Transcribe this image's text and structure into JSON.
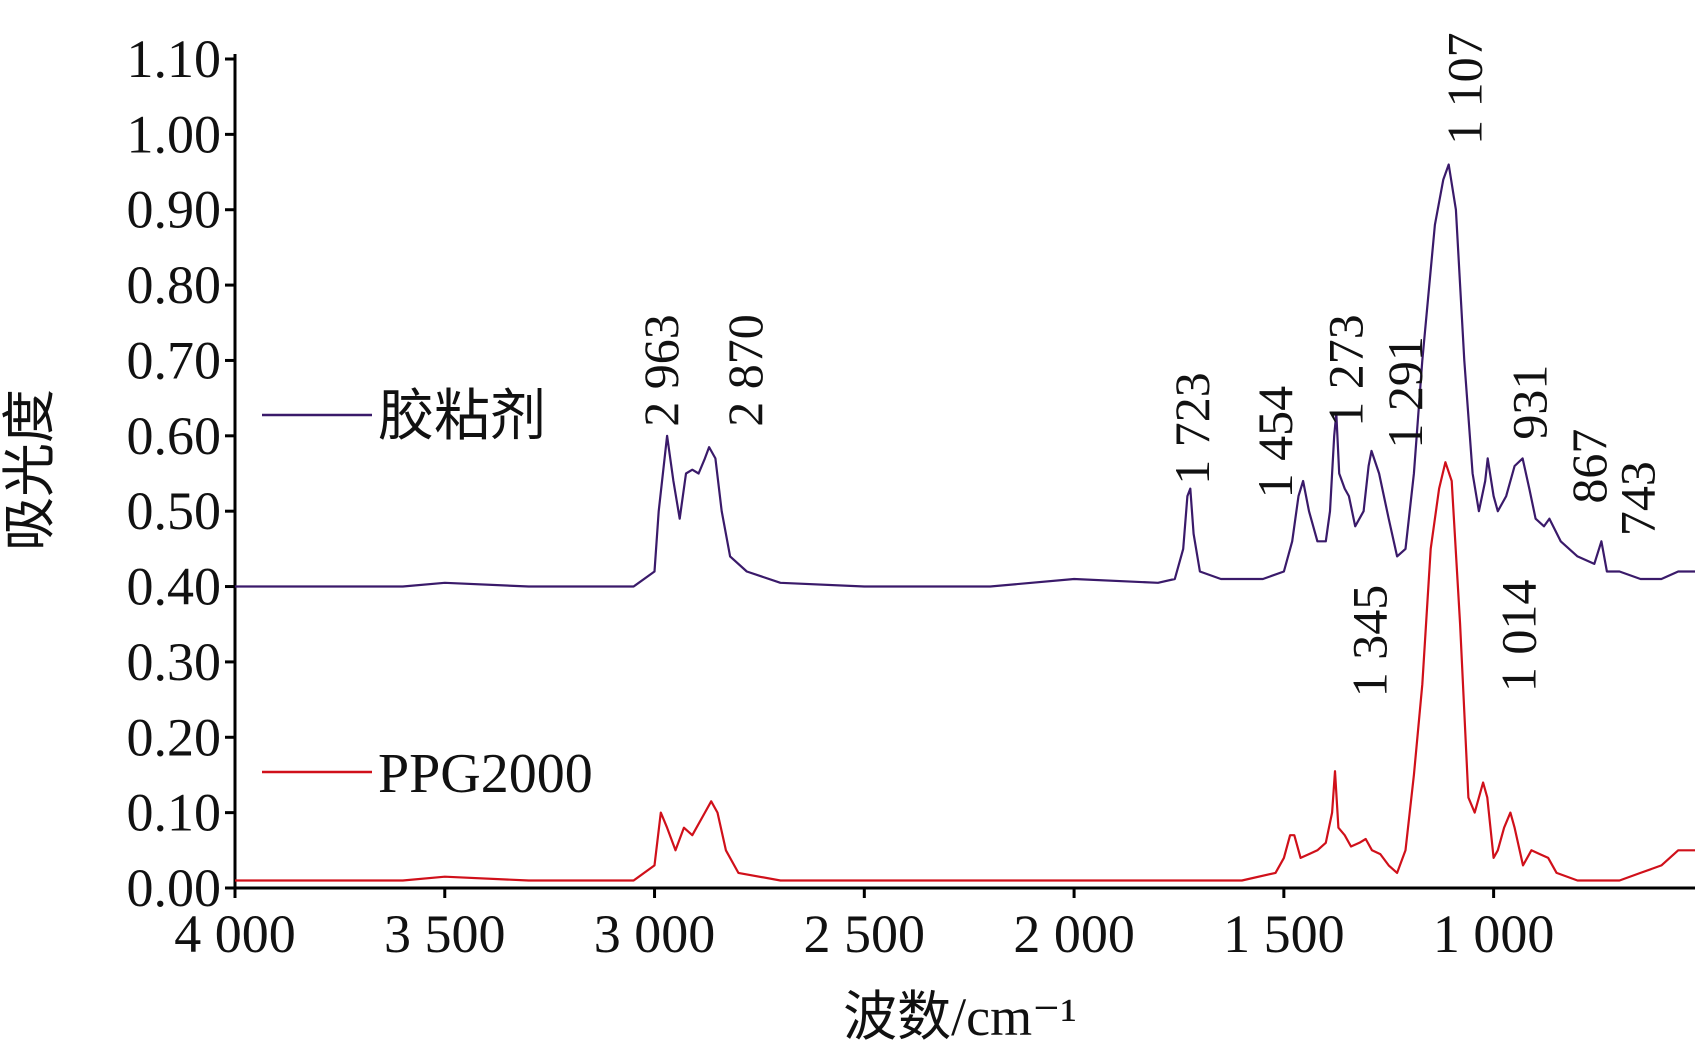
{
  "chart_data": {
    "type": "line",
    "x_label": "波数/cm⁻¹",
    "y_label": "吸光度",
    "xlim": [
      4000,
      520
    ],
    "ylim": [
      0,
      1.1
    ],
    "xticks": [
      {
        "value": 4000,
        "label": "4 000"
      },
      {
        "value": 3500,
        "label": "3 500"
      },
      {
        "value": 3000,
        "label": "3 000"
      },
      {
        "value": 2500,
        "label": "2 500"
      },
      {
        "value": 2000,
        "label": "2 000"
      },
      {
        "value": 1500,
        "label": "1 500"
      },
      {
        "value": 1000,
        "label": "1 000"
      }
    ],
    "yticks": [
      {
        "value": 0,
        "label": "0.00"
      },
      {
        "value": 0.1,
        "label": "0.10"
      },
      {
        "value": 0.2,
        "label": "0.20"
      },
      {
        "value": 0.3,
        "label": "0.30"
      },
      {
        "value": 0.4,
        "label": "0.40"
      },
      {
        "value": 0.5,
        "label": "0.50"
      },
      {
        "value": 0.6,
        "label": "0.60"
      },
      {
        "value": 0.7,
        "label": "0.70"
      },
      {
        "value": 0.8,
        "label": "0.80"
      },
      {
        "value": 0.9,
        "label": "0.90"
      },
      {
        "value": 1.0,
        "label": "1.00"
      },
      {
        "value": 1.1,
        "label": "1.10"
      }
    ],
    "legend": "left",
    "series": [
      {
        "name": "胶粘剂",
        "color": "#3a1a6a",
        "x": [
          4000,
          3600,
          3500,
          3300,
          3050,
          3000,
          2990,
          2970,
          2955,
          2940,
          2925,
          2910,
          2895,
          2880,
          2870,
          2855,
          2840,
          2820,
          2780,
          2700,
          2500,
          2200,
          2000,
          1800,
          1760,
          1740,
          1730,
          1723,
          1715,
          1700,
          1650,
          1550,
          1500,
          1480,
          1465,
          1454,
          1440,
          1420,
          1400,
          1390,
          1380,
          1375,
          1368,
          1355,
          1345,
          1330,
          1310,
          1298,
          1291,
          1273,
          1250,
          1230,
          1210,
          1190,
          1170,
          1140,
          1120,
          1107,
          1090,
          1070,
          1050,
          1035,
          1020,
          1014,
          1000,
          990,
          970,
          950,
          931,
          915,
          900,
          880,
          867,
          840,
          800,
          760,
          743,
          730,
          700,
          650,
          600,
          560,
          520
        ],
        "values": [
          0.4,
          0.4,
          0.405,
          0.4,
          0.4,
          0.42,
          0.5,
          0.6,
          0.54,
          0.49,
          0.55,
          0.555,
          0.55,
          0.57,
          0.585,
          0.57,
          0.5,
          0.44,
          0.42,
          0.405,
          0.4,
          0.4,
          0.41,
          0.405,
          0.41,
          0.45,
          0.52,
          0.53,
          0.47,
          0.42,
          0.41,
          0.41,
          0.42,
          0.46,
          0.52,
          0.54,
          0.5,
          0.46,
          0.46,
          0.5,
          0.6,
          0.63,
          0.55,
          0.53,
          0.52,
          0.48,
          0.5,
          0.56,
          0.58,
          0.55,
          0.49,
          0.44,
          0.45,
          0.55,
          0.7,
          0.88,
          0.94,
          0.96,
          0.9,
          0.7,
          0.55,
          0.5,
          0.54,
          0.57,
          0.52,
          0.5,
          0.52,
          0.56,
          0.57,
          0.53,
          0.49,
          0.48,
          0.49,
          0.46,
          0.44,
          0.43,
          0.46,
          0.42,
          0.42,
          0.41,
          0.41,
          0.42,
          0.42
        ]
      },
      {
        "name": "PPG2000",
        "color": "#d0101a",
        "x": [
          4000,
          3600,
          3500,
          3300,
          3050,
          3000,
          2985,
          2970,
          2950,
          2930,
          2910,
          2880,
          2865,
          2850,
          2830,
          2800,
          2700,
          2000,
          1600,
          1520,
          1500,
          1485,
          1475,
          1460,
          1440,
          1420,
          1400,
          1385,
          1378,
          1370,
          1355,
          1340,
          1320,
          1305,
          1290,
          1270,
          1250,
          1230,
          1210,
          1190,
          1170,
          1150,
          1130,
          1115,
          1100,
          1080,
          1060,
          1045,
          1035,
          1025,
          1015,
          1000,
          990,
          975,
          960,
          950,
          930,
          910,
          890,
          870,
          850,
          800,
          700,
          650,
          600,
          560,
          520
        ],
        "values": [
          0.01,
          0.01,
          0.015,
          0.01,
          0.01,
          0.03,
          0.1,
          0.08,
          0.05,
          0.08,
          0.07,
          0.1,
          0.115,
          0.1,
          0.05,
          0.02,
          0.01,
          0.01,
          0.01,
          0.02,
          0.04,
          0.07,
          0.07,
          0.04,
          0.045,
          0.05,
          0.06,
          0.1,
          0.155,
          0.08,
          0.07,
          0.055,
          0.06,
          0.065,
          0.05,
          0.045,
          0.03,
          0.02,
          0.05,
          0.15,
          0.27,
          0.45,
          0.53,
          0.565,
          0.54,
          0.35,
          0.12,
          0.1,
          0.12,
          0.14,
          0.12,
          0.04,
          0.05,
          0.08,
          0.1,
          0.08,
          0.03,
          0.05,
          0.045,
          0.04,
          0.02,
          0.01,
          0.01,
          0.02,
          0.03,
          0.05,
          0.05
        ]
      }
    ],
    "annotations": [
      {
        "text": "2 963",
        "x": 2985,
        "y": 0.612
      },
      {
        "text": "2 870",
        "x": 2784,
        "y": 0.612
      },
      {
        "text": "1 723",
        "x": 1719,
        "y": 0.535
      },
      {
        "text": "1 454",
        "x": 1521,
        "y": 0.517
      },
      {
        "text": "1 273",
        "x": 1353,
        "y": 0.612
      },
      {
        "text": "1 291",
        "x": 1211,
        "y": 0.583
      },
      {
        "text": "1 107",
        "x": 1070,
        "y": 0.986
      },
      {
        "text": "931",
        "x": 915,
        "y": 0.595
      },
      {
        "text": "867",
        "x": 773,
        "y": 0.51
      },
      {
        "text": "743",
        "x": 657,
        "y": 0.467
      },
      {
        "text": "1 345",
        "x": 1296,
        "y": 0.253
      },
      {
        "text": "1 014",
        "x": 941,
        "y": 0.26
      }
    ]
  }
}
